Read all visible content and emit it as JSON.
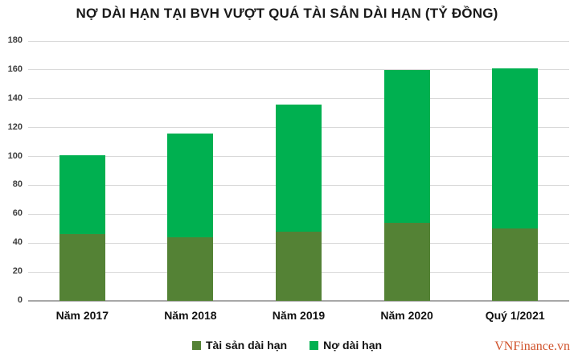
{
  "watermark": "VNFinance.vn",
  "colors": {
    "assets_series": "#548235",
    "debt_series": "#00B050",
    "gridline": "#d9d9d9",
    "axis_line": "#a8a8a8",
    "title_text": "#1a1a1a",
    "watermark_text": "#d0532c",
    "background": "#ffffff"
  },
  "chart_data": {
    "type": "bar",
    "stacked": true,
    "title": "NỢ DÀI HẠN TẠI BVH VƯỢT QUÁ TÀI SẢN DÀI HẠN (TỶ ĐỒNG)",
    "categories": [
      "Năm 2017",
      "Năm 2018",
      "Năm 2019",
      "Năm 2020",
      "Quý 1/2021"
    ],
    "series": [
      {
        "name": "Tài sản dài hạn",
        "color": "#548235",
        "values": [
          46,
          44,
          48,
          54,
          50
        ]
      },
      {
        "name": "Nợ dài hạn",
        "color": "#00B050",
        "values": [
          55,
          72,
          88,
          106,
          111
        ]
      }
    ],
    "stack_totals": [
      101,
      116,
      136,
      160,
      161
    ],
    "xlabel": "",
    "ylabel": "",
    "ylim": [
      0,
      180
    ],
    "ytick_step": 20,
    "yticks": [
      0,
      20,
      40,
      60,
      80,
      100,
      120,
      140,
      160,
      180
    ],
    "grid": true,
    "legend_position": "bottom"
  }
}
